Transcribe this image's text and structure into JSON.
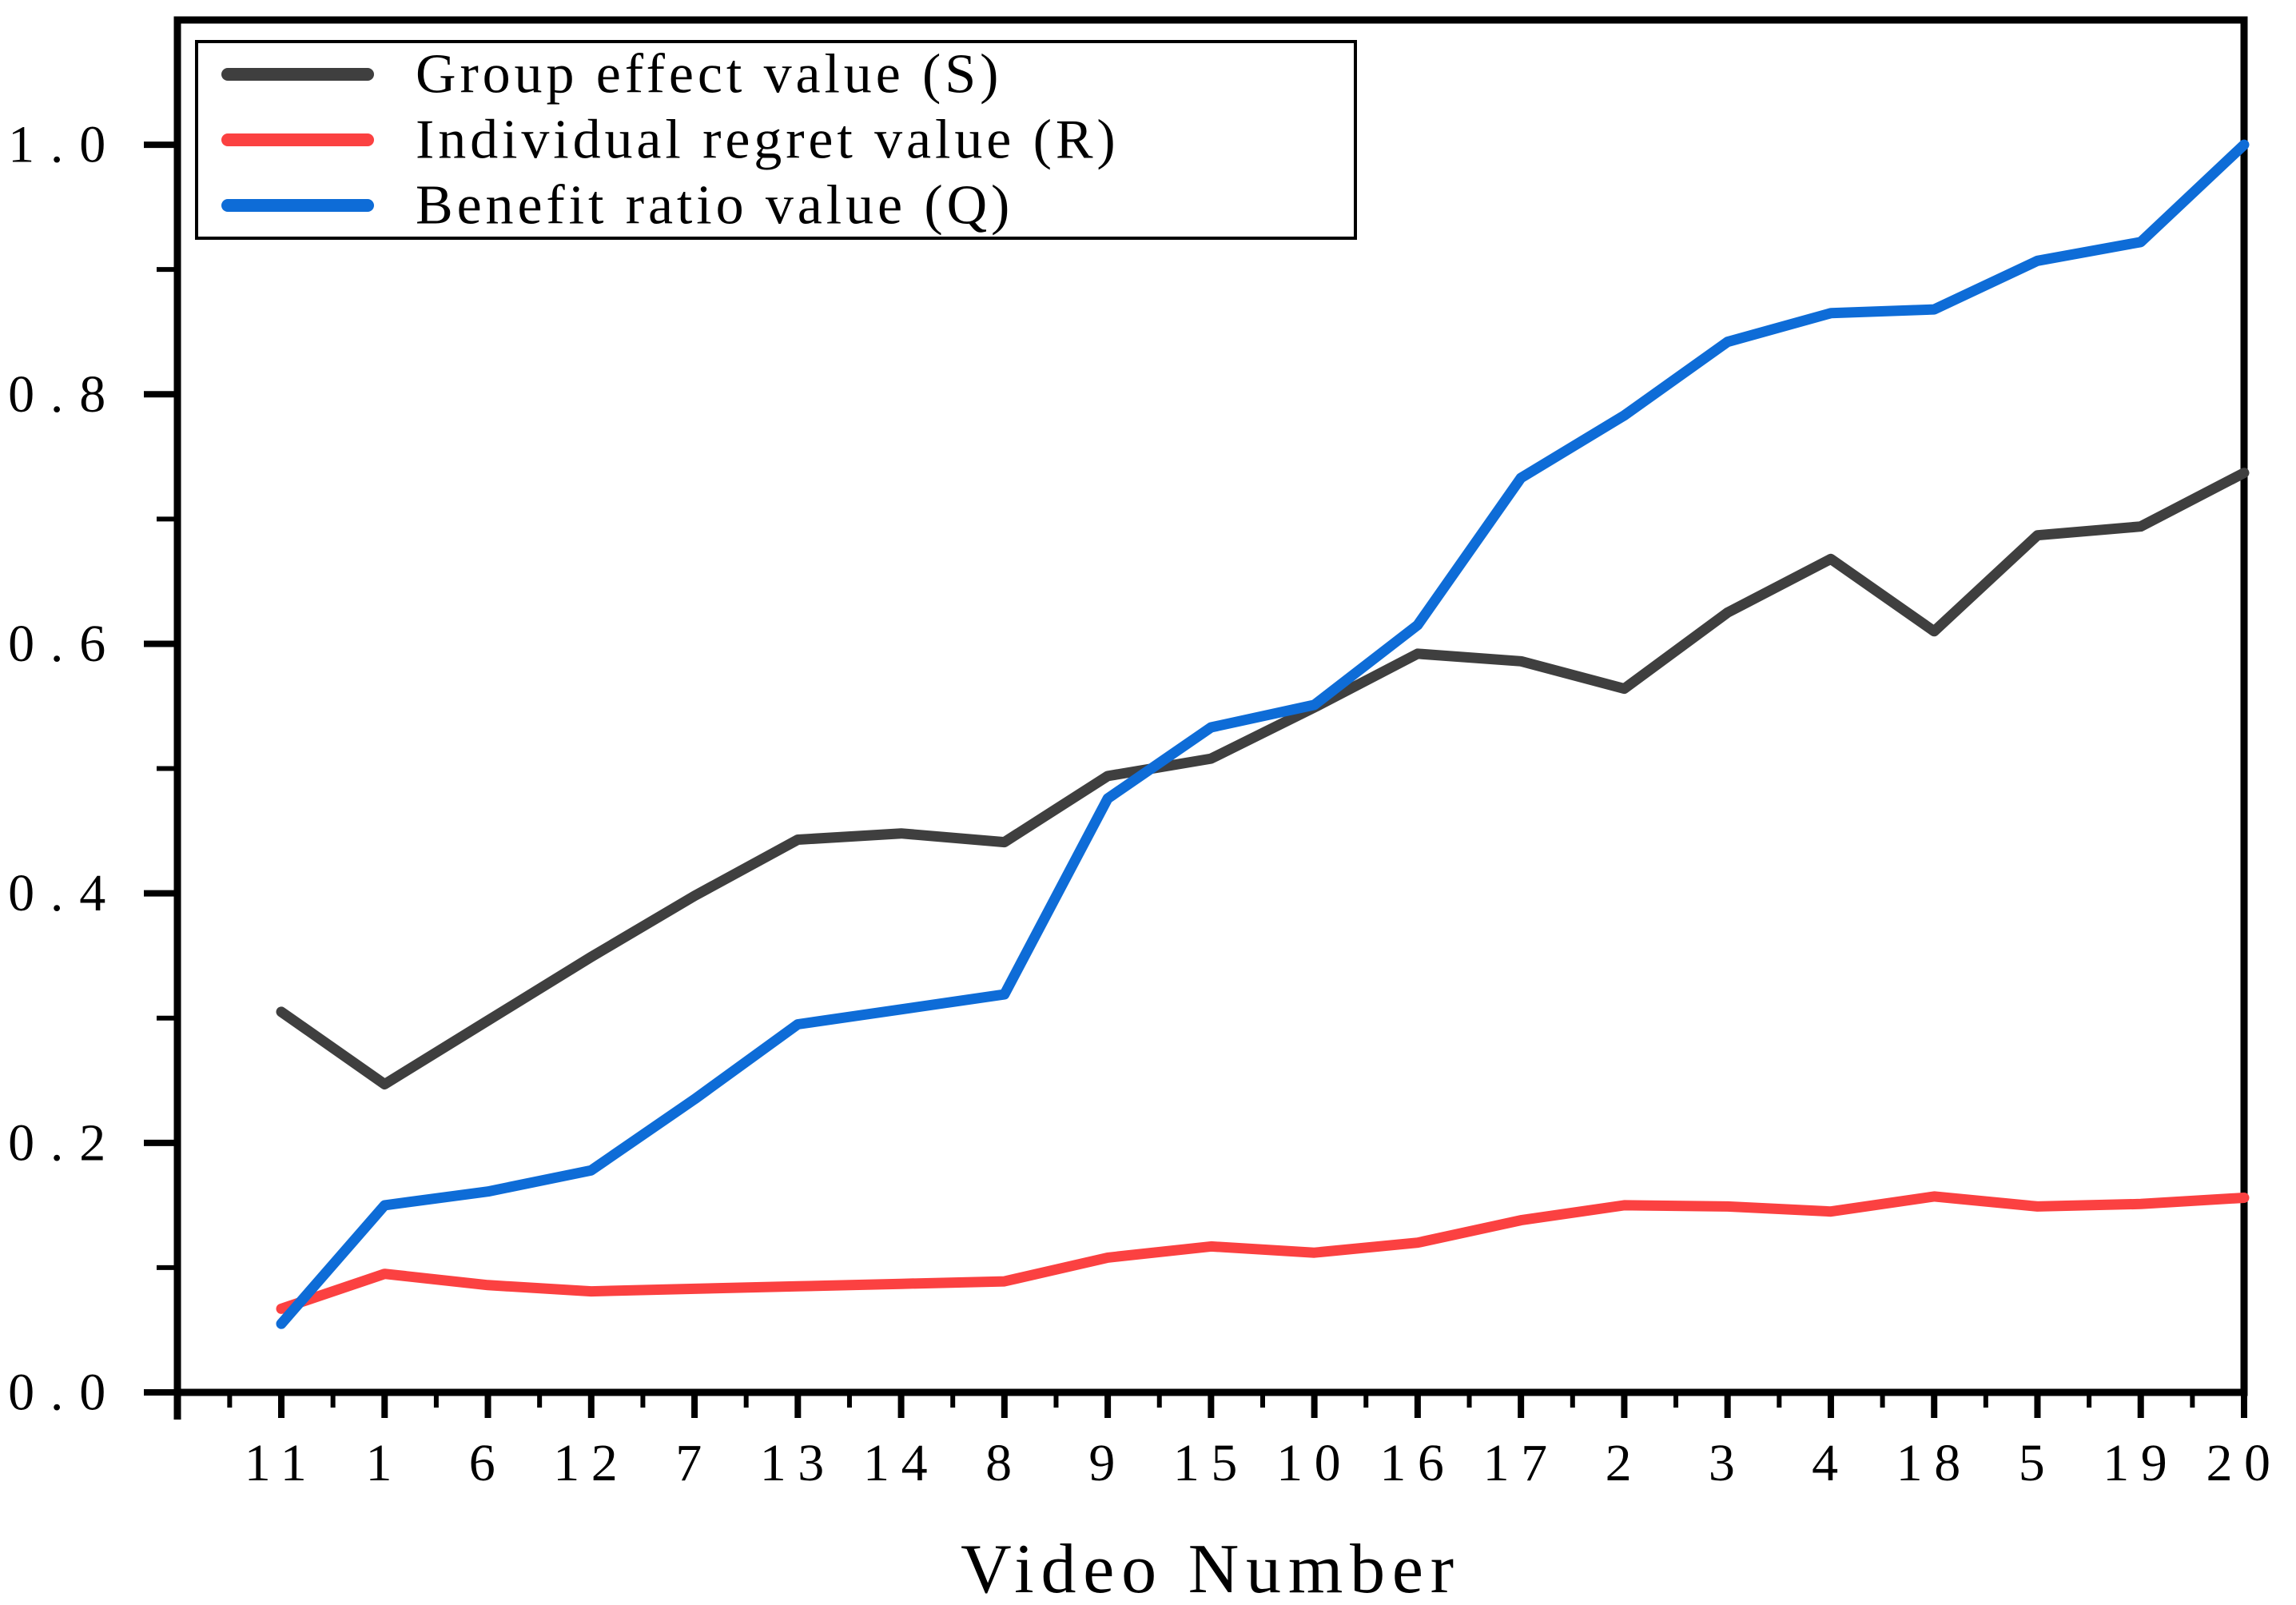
{
  "figure": {
    "background": "#ffffff",
    "frame_color": "#000000"
  },
  "chart_data": {
    "type": "line",
    "title": "",
    "xlabel": "Video Number",
    "ylabel": "",
    "categories": [
      "11",
      "1",
      "6",
      "12",
      "7",
      "13",
      "14",
      "8",
      "9",
      "15",
      "10",
      "16",
      "17",
      "2",
      "3",
      "4",
      "18",
      "5",
      "19",
      "20"
    ],
    "ylim": [
      0,
      1.1
    ],
    "ytick_labels": [
      "0.0",
      "0.2",
      "0.4",
      "0.6",
      "0.8",
      "1.0"
    ],
    "yticks_major": [
      0.0,
      0.2,
      0.4,
      0.6,
      0.8,
      1.0
    ],
    "yticks_minor": [
      0.1,
      0.3,
      0.5,
      0.7,
      0.9
    ],
    "grid": false,
    "legend_position": "top-left",
    "series": [
      {
        "name": "Group effect value (S)",
        "color": "#3f3f3f",
        "values": [
          0.305,
          0.247,
          0.298,
          0.349,
          0.398,
          0.443,
          0.448,
          0.441,
          0.494,
          0.508,
          0.549,
          0.592,
          0.586,
          0.564,
          0.625,
          0.668,
          0.61,
          0.687,
          0.694,
          0.737
        ]
      },
      {
        "name": "Individual regret value (R)",
        "color": "#fb4141",
        "values": [
          0.067,
          0.095,
          0.086,
          0.081,
          0.083,
          0.085,
          0.087,
          0.089,
          0.108,
          0.117,
          0.112,
          0.12,
          0.138,
          0.15,
          0.149,
          0.145,
          0.157,
          0.149,
          0.151,
          0.156
        ]
      },
      {
        "name": "Benefit ratio value (Q)",
        "color": "#0e6cd7",
        "values": [
          0.055,
          0.15,
          0.161,
          0.178,
          0.235,
          0.295,
          0.307,
          0.319,
          0.476,
          0.533,
          0.551,
          0.615,
          0.733,
          0.783,
          0.842,
          0.865,
          0.868,
          0.907,
          0.922,
          1.0
        ]
      }
    ]
  }
}
